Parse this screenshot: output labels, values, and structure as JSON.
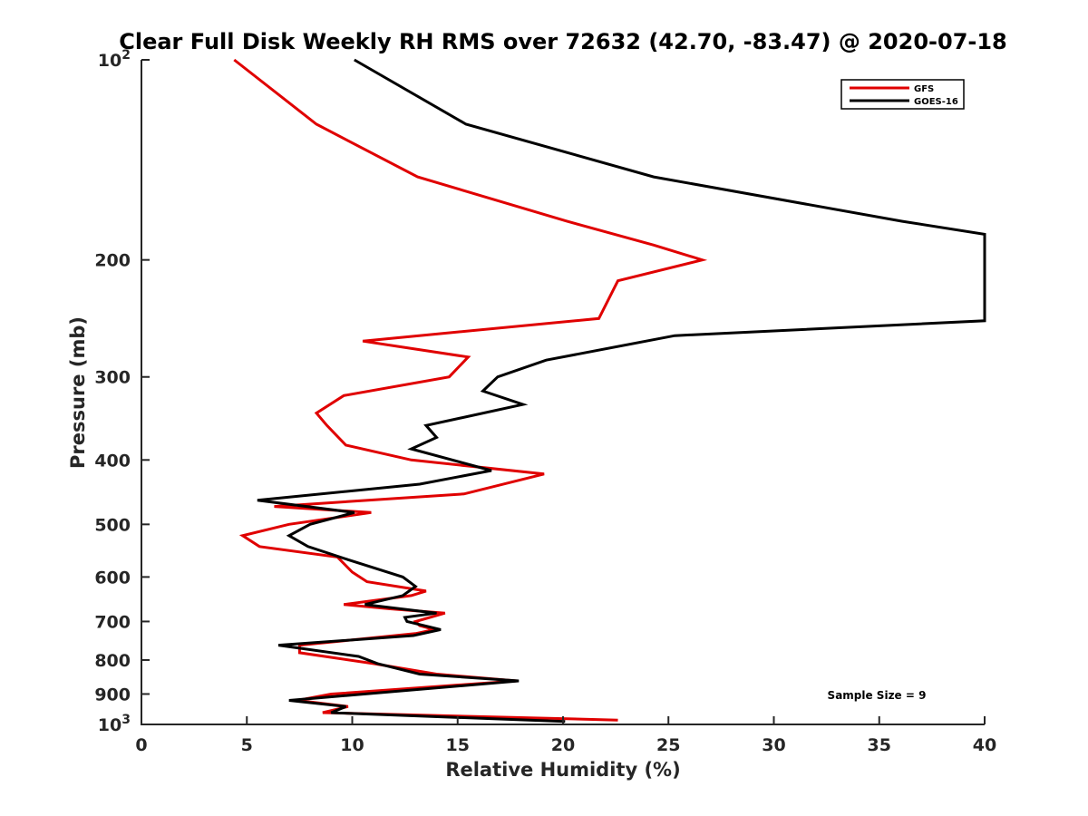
{
  "chart_data": {
    "type": "line",
    "title": "Clear Full Disk Weekly RH RMS over 72632 (42.70, -83.47) @ 2020-07-18",
    "xlabel": "Relative Humidity (%)",
    "ylabel": "Pressure (mb)",
    "xlim": [
      0,
      40
    ],
    "ylim": [
      100,
      1000
    ],
    "yscale": "log",
    "y_reversed": true,
    "grid": false,
    "legend_position": "top-right",
    "xticks": [
      {
        "value": 0,
        "label": "0"
      },
      {
        "value": 5,
        "label": "5"
      },
      {
        "value": 10,
        "label": "10"
      },
      {
        "value": 15,
        "label": "15"
      },
      {
        "value": 20,
        "label": "20"
      },
      {
        "value": 25,
        "label": "25"
      },
      {
        "value": 30,
        "label": "30"
      },
      {
        "value": 35,
        "label": "35"
      },
      {
        "value": 40,
        "label": "40"
      }
    ],
    "yticks": [
      {
        "value": 100,
        "base": "10",
        "exp": "2"
      },
      {
        "value": 200,
        "label": "200"
      },
      {
        "value": 300,
        "label": "300"
      },
      {
        "value": 400,
        "label": "400"
      },
      {
        "value": 500,
        "label": "500"
      },
      {
        "value": 600,
        "label": "600"
      },
      {
        "value": 700,
        "label": "700"
      },
      {
        "value": 800,
        "label": "800"
      },
      {
        "value": 900,
        "label": "900"
      },
      {
        "value": 1000,
        "base": "10",
        "exp": "3"
      }
    ],
    "series": [
      {
        "name": "GFS",
        "color": "#e00000",
        "points": [
          [
            4.4,
            100
          ],
          [
            8.3,
            125
          ],
          [
            13.1,
            150
          ],
          [
            20.2,
            175
          ],
          [
            24.3,
            190
          ],
          [
            26.6,
            200
          ],
          [
            22.6,
            215
          ],
          [
            21.7,
            245
          ],
          [
            10.5,
            265
          ],
          [
            15.5,
            280
          ],
          [
            14.6,
            300
          ],
          [
            9.6,
            320
          ],
          [
            8.3,
            340
          ],
          [
            8.8,
            355
          ],
          [
            9.7,
            380
          ],
          [
            12.8,
            400
          ],
          [
            19.1,
            420
          ],
          [
            15.3,
            450
          ],
          [
            6.3,
            470
          ],
          [
            10.9,
            480
          ],
          [
            7.0,
            500
          ],
          [
            4.8,
            520
          ],
          [
            5.6,
            540
          ],
          [
            9.3,
            560
          ],
          [
            10.0,
            590
          ],
          [
            10.7,
            610
          ],
          [
            13.5,
            630
          ],
          [
            12.8,
            640
          ],
          [
            9.6,
            660
          ],
          [
            11.8,
            670
          ],
          [
            14.4,
            680
          ],
          [
            13.0,
            700
          ],
          [
            13.2,
            710
          ],
          [
            13.9,
            720
          ],
          [
            13.0,
            730
          ],
          [
            7.5,
            760
          ],
          [
            7.5,
            780
          ],
          [
            11.0,
            810
          ],
          [
            14.0,
            840
          ],
          [
            17.8,
            860
          ],
          [
            9.0,
            900
          ],
          [
            7.4,
            920
          ],
          [
            9.8,
            940
          ],
          [
            8.6,
            960
          ],
          [
            22.6,
            985
          ]
        ]
      },
      {
        "name": "GOES-16",
        "color": "#000000",
        "points": [
          [
            10.1,
            100
          ],
          [
            15.4,
            125
          ],
          [
            24.3,
            150
          ],
          [
            36.1,
            175
          ],
          [
            40.0,
            183
          ],
          [
            40.0,
            247
          ],
          [
            25.3,
            260
          ],
          [
            19.2,
            283
          ],
          [
            16.9,
            300
          ],
          [
            16.2,
            315
          ],
          [
            18.1,
            330
          ],
          [
            13.5,
            355
          ],
          [
            14.0,
            370
          ],
          [
            12.8,
            385
          ],
          [
            16.6,
            415
          ],
          [
            13.2,
            435
          ],
          [
            5.5,
            460
          ],
          [
            10.1,
            480
          ],
          [
            8.0,
            500
          ],
          [
            7.0,
            520
          ],
          [
            7.9,
            540
          ],
          [
            9.8,
            565
          ],
          [
            12.4,
            600
          ],
          [
            13.0,
            620
          ],
          [
            12.4,
            640
          ],
          [
            10.6,
            660
          ],
          [
            14.0,
            680
          ],
          [
            12.5,
            690
          ],
          [
            12.6,
            700
          ],
          [
            14.2,
            720
          ],
          [
            12.9,
            735
          ],
          [
            6.5,
            760
          ],
          [
            10.3,
            790
          ],
          [
            11.2,
            810
          ],
          [
            13.2,
            840
          ],
          [
            17.9,
            860
          ],
          [
            7.0,
            920
          ],
          [
            9.7,
            940
          ],
          [
            9.0,
            960
          ],
          [
            20.1,
            990
          ]
        ]
      }
    ],
    "annotation": "Sample Size = 9"
  }
}
